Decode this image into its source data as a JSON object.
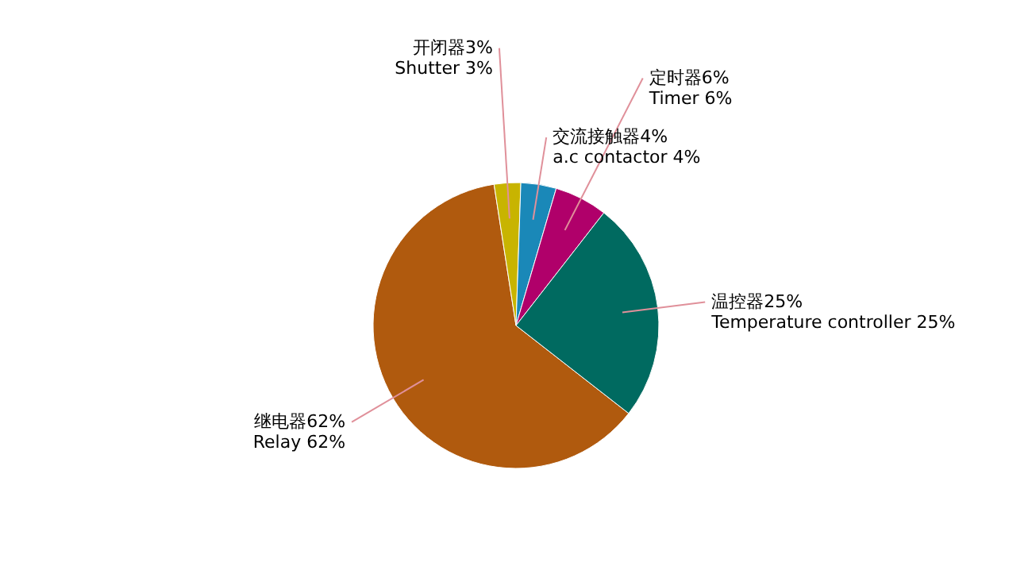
{
  "chart_data": {
    "type": "pie",
    "categories": [
      "继电器62%\nRelay 62%",
      "开闭器3%\nShutter 3%",
      "交流接触器4%\na.c contactor  4%",
      "定时器6%\nTimer 6%",
      "温控器25%\nTemperature controller 25%"
    ],
    "values": [
      62,
      3,
      4,
      6,
      25
    ],
    "colors": [
      "#b05a0e",
      "#c8b400",
      "#1a88b8",
      "#b0006a",
      "#006a60"
    ]
  }
}
